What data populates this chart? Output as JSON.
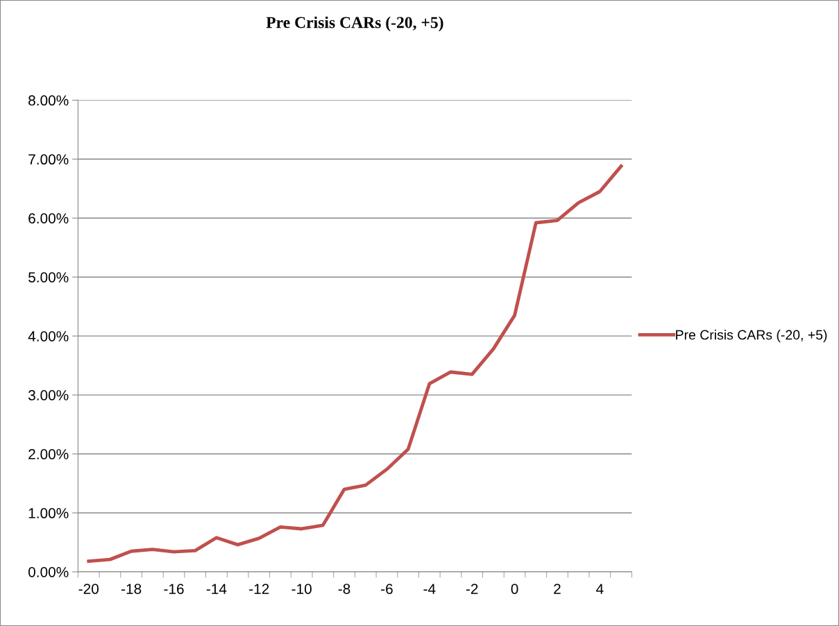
{
  "chart_data": {
    "type": "line",
    "title": "Pre Crisis CARs (-20, +5)",
    "categories": [
      "-20",
      null,
      "-18",
      null,
      "-16",
      null,
      "-14",
      null,
      "-12",
      null,
      "-10",
      null,
      "-8",
      null,
      "-6",
      null,
      "-4",
      null,
      "-2",
      null,
      "0",
      null,
      "2",
      null,
      "4",
      null
    ],
    "series": [
      {
        "name": "Pre Crisis CARs (-20, +5)",
        "color": "#c0504d",
        "values": [
          0.18,
          0.21,
          0.35,
          0.38,
          0.34,
          0.36,
          0.58,
          0.46,
          0.57,
          0.76,
          0.73,
          0.79,
          1.4,
          1.47,
          1.74,
          2.08,
          3.19,
          3.39,
          3.35,
          3.78,
          4.35,
          5.92,
          5.96,
          6.26,
          6.45,
          6.88
        ]
      }
    ],
    "ylim": [
      0,
      8
    ],
    "yticks": [
      {
        "value": 0,
        "label": "0.00%"
      },
      {
        "value": 1,
        "label": "1.00%"
      },
      {
        "value": 2,
        "label": "2.00%"
      },
      {
        "value": 3,
        "label": "3.00%"
      },
      {
        "value": 4,
        "label": "4.00%"
      },
      {
        "value": 5,
        "label": "5.00%"
      },
      {
        "value": 6,
        "label": "6.00%"
      },
      {
        "value": 7,
        "label": "7.00%"
      },
      {
        "value": 8,
        "label": "8.00%"
      }
    ],
    "grid": "y",
    "legend": "right",
    "marker": "none",
    "line_style": "solid"
  }
}
